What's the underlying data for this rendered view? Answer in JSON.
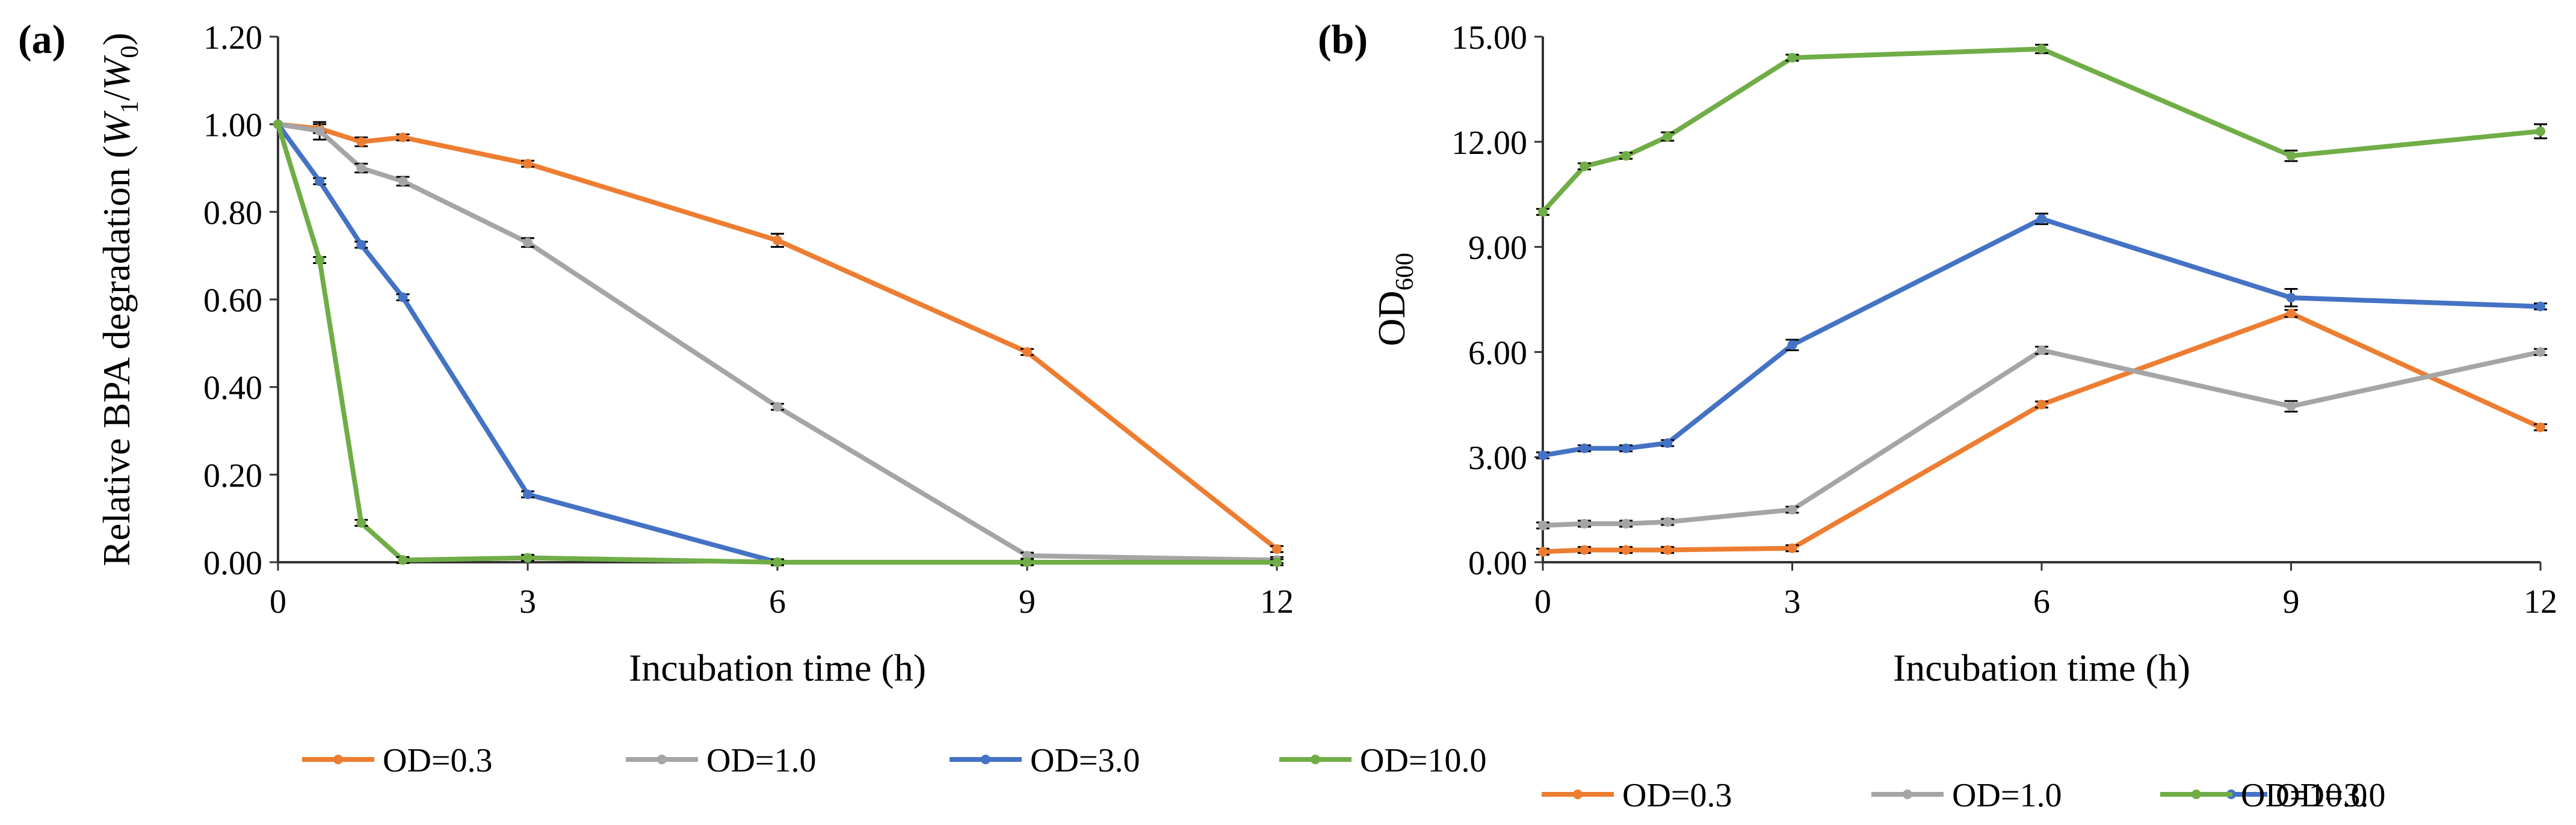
{
  "colors": {
    "series": [
      "#ED7D31",
      "#A5A5A5",
      "#4472C4",
      "#70AD47"
    ],
    "axis": "#333333",
    "errorbar": "#000000"
  },
  "chart_data": [
    {
      "type": "line",
      "panel_label": "(a)",
      "title": "",
      "xlabel": "Incubation time (h)",
      "ylabel_parts": [
        "Relative BPA degradation (",
        "W",
        "1",
        "/",
        "W",
        "0",
        ")"
      ],
      "x": [
        0,
        0.5,
        1,
        1.5,
        3,
        6,
        9,
        12
      ],
      "xticks": [
        "0",
        "3",
        "6",
        "9",
        "12"
      ],
      "xtick_values": [
        0,
        3,
        6,
        9,
        12
      ],
      "xlim": [
        0,
        12
      ],
      "ylim": [
        0,
        1.2
      ],
      "yticks": [
        "0.00",
        "0.20",
        "0.40",
        "0.60",
        "0.80",
        "1.00",
        "1.20"
      ],
      "ytick_values": [
        0,
        0.2,
        0.4,
        0.6,
        0.8,
        1.0,
        1.2
      ],
      "legend": "bottom",
      "grid": false,
      "series": [
        {
          "name": "OD=0.3",
          "values": [
            1.0,
            0.99,
            0.96,
            0.97,
            0.91,
            0.735,
            0.48,
            0.03
          ],
          "errors": [
            0,
            0.01,
            0.01,
            0.005,
            0.005,
            0.015,
            0.005,
            0.005
          ]
        },
        {
          "name": "OD=1.0",
          "values": [
            1.0,
            0.985,
            0.9,
            0.87,
            0.73,
            0.355,
            0.015,
            0.005
          ],
          "errors": [
            0,
            0.02,
            0.01,
            0.01,
            0.01,
            0.005,
            0.005,
            0.005
          ]
        },
        {
          "name": "OD=3.0",
          "values": [
            1.0,
            0.87,
            0.725,
            0.605,
            0.155,
            0.0,
            0.0,
            0.0
          ],
          "errors": [
            0,
            0.005,
            0.005,
            0.005,
            0.005,
            0.003,
            0.003,
            0.003
          ]
        },
        {
          "name": "OD=10.0",
          "values": [
            1.0,
            0.69,
            0.09,
            0.005,
            0.01,
            0.0,
            0.0,
            0.0
          ],
          "errors": [
            0,
            0.005,
            0.005,
            0.003,
            0.003,
            0.003,
            0.003,
            0.003
          ]
        }
      ]
    },
    {
      "type": "line",
      "panel_label": "(b)",
      "title": "",
      "xlabel": "Incubation time (h)",
      "ylabel_parts": [
        "OD",
        "600"
      ],
      "x": [
        0,
        0.5,
        1,
        1.5,
        3,
        6,
        9,
        12
      ],
      "xticks": [
        "0",
        "3",
        "6",
        "9",
        "12"
      ],
      "xtick_values": [
        0,
        3,
        6,
        9,
        12
      ],
      "xlim": [
        0,
        12
      ],
      "ylim": [
        0,
        15
      ],
      "yticks": [
        "0.00",
        "3.00",
        "6.00",
        "9.00",
        "12.00",
        "15.00"
      ],
      "ytick_values": [
        0,
        3,
        6,
        9,
        12,
        15
      ],
      "legend": "bottom",
      "grid": false,
      "series": [
        {
          "name": "OD=0.3",
          "values": [
            0.3,
            0.35,
            0.35,
            0.35,
            0.4,
            4.5,
            7.1,
            3.85
          ],
          "errors": [
            0.02,
            0.02,
            0.02,
            0.02,
            0.02,
            0.08,
            0.1,
            0.06
          ]
        },
        {
          "name": "OD=1.0",
          "values": [
            1.05,
            1.1,
            1.1,
            1.15,
            1.5,
            6.05,
            4.45,
            6.0
          ],
          "errors": [
            0.03,
            0.03,
            0.03,
            0.03,
            0.05,
            0.1,
            0.15,
            0.08
          ]
        },
        {
          "name": "OD=3.0",
          "values": [
            3.05,
            3.25,
            3.25,
            3.4,
            6.2,
            9.8,
            7.55,
            7.3
          ],
          "errors": [
            0.05,
            0.05,
            0.05,
            0.05,
            0.15,
            0.15,
            0.25,
            0.08
          ]
        },
        {
          "name": "OD=10.0",
          "values": [
            10.0,
            11.3,
            11.6,
            12.15,
            14.4,
            14.65,
            11.6,
            12.3
          ],
          "errors": [
            0.05,
            0.08,
            0.08,
            0.12,
            0.05,
            0.12,
            0.15,
            0.2
          ]
        }
      ]
    }
  ]
}
